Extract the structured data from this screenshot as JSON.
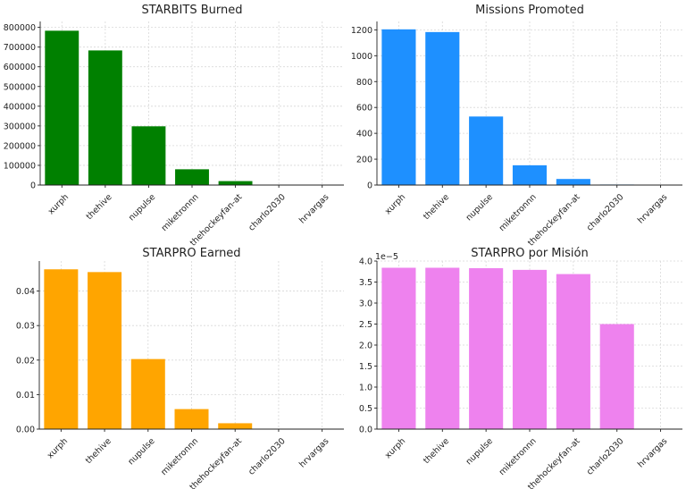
{
  "chart_data": [
    {
      "type": "bar",
      "title": "STARBITS Burned",
      "categories": [
        "xurph",
        "thehive",
        "nupulse",
        "miketronnn",
        "thehockeyfan-at",
        "charlo2030",
        "hrvargas"
      ],
      "values": [
        783000,
        683000,
        298000,
        80000,
        20000,
        1500,
        500
      ],
      "ylim": [
        0,
        830000
      ],
      "yticks": [
        0,
        100000,
        200000,
        300000,
        400000,
        500000,
        600000,
        700000,
        800000
      ],
      "ytick_labels": [
        "0",
        "100000",
        "200000",
        "300000",
        "400000",
        "500000",
        "600000",
        "700000",
        "800000"
      ],
      "y_offset_label": "",
      "color": "#008000",
      "grid": true
    },
    {
      "type": "bar",
      "title": "Missions Promoted",
      "categories": [
        "xurph",
        "thehive",
        "nupulse",
        "miketronnn",
        "thehockeyfan-at",
        "charlo2030",
        "hrvargas"
      ],
      "values": [
        1204,
        1183,
        530,
        153,
        47,
        4,
        1
      ],
      "ylim": [
        0,
        1265
      ],
      "yticks": [
        0,
        200,
        400,
        600,
        800,
        1000,
        1200
      ],
      "ytick_labels": [
        "0",
        "200",
        "400",
        "600",
        "800",
        "1000",
        "1200"
      ],
      "y_offset_label": "",
      "color": "#1e90ff",
      "grid": true
    },
    {
      "type": "bar",
      "title": "STARPRO Earned",
      "categories": [
        "xurph",
        "thehive",
        "nupulse",
        "miketronnn",
        "thehockeyfan-at",
        "charlo2030",
        "hrvargas"
      ],
      "values": [
        0.0463,
        0.0455,
        0.0203,
        0.0058,
        0.0017,
        0.0001,
        0.0
      ],
      "ylim": [
        0,
        0.0487
      ],
      "yticks": [
        0,
        0.01,
        0.02,
        0.03,
        0.04
      ],
      "ytick_labels": [
        "0.00",
        "0.01",
        "0.02",
        "0.03",
        "0.04"
      ],
      "y_offset_label": "",
      "color": "#ffa500",
      "grid": true
    },
    {
      "type": "bar",
      "title": "STARPRO por Misión",
      "categories": [
        "xurph",
        "thehive",
        "nupulse",
        "miketronnn",
        "thehockeyfan-at",
        "charlo2030",
        "hrvargas"
      ],
      "values": [
        3.84,
        3.84,
        3.83,
        3.79,
        3.69,
        2.5,
        0.0
      ],
      "ylim": [
        0,
        4.0
      ],
      "yticks": [
        0,
        0.5,
        1.0,
        1.5,
        2.0,
        2.5,
        3.0,
        3.5,
        4.0
      ],
      "ytick_labels": [
        "0.0",
        "0.5",
        "1.0",
        "1.5",
        "2.0",
        "2.5",
        "3.0",
        "3.5",
        "4.0"
      ],
      "y_offset_label": "1e−5",
      "color": "#ee82ee",
      "grid": true
    }
  ]
}
